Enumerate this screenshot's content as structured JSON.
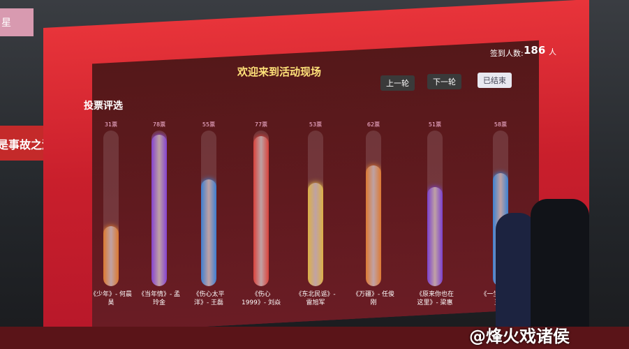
{
  "screen": {
    "title": "欢迎来到活动现场",
    "checkin_label": "签到人数:",
    "checkin_count": 186,
    "checkin_unit": "人",
    "buttons": [
      "上一轮",
      "下一轮",
      "已结束"
    ],
    "section_title": "投票评选"
  },
  "chart_data": {
    "type": "bar",
    "categories": [
      "《少年》- 何晨昊",
      "《当年情》- 孟玲金",
      "《伤心太平洋》- 王磊",
      "《伤心1999》- 刘焱",
      "《东北民谣》- 雷旭军",
      "《万疆》- 任俊刚",
      "《原来你也在这里》- 梁惠",
      "《一生何求》- 王强"
    ],
    "values": [
      31,
      78,
      55,
      77,
      53,
      62,
      51,
      58
    ],
    "value_labels": [
      "31票",
      "78票",
      "55票",
      "77票",
      "53票",
      "62票",
      "51票",
      "58票"
    ],
    "colors": [
      "#f5892c",
      "#8a45f5",
      "#2f90f7",
      "#f2453c",
      "#f6cf48",
      "#f78a30",
      "#7d42f2",
      "#2f94f7"
    ],
    "ylim": [
      0,
      80
    ]
  },
  "signage": {
    "left_top": "星",
    "left_banner": "是事故之源"
  },
  "watermark": "@烽火戏诸侯"
}
